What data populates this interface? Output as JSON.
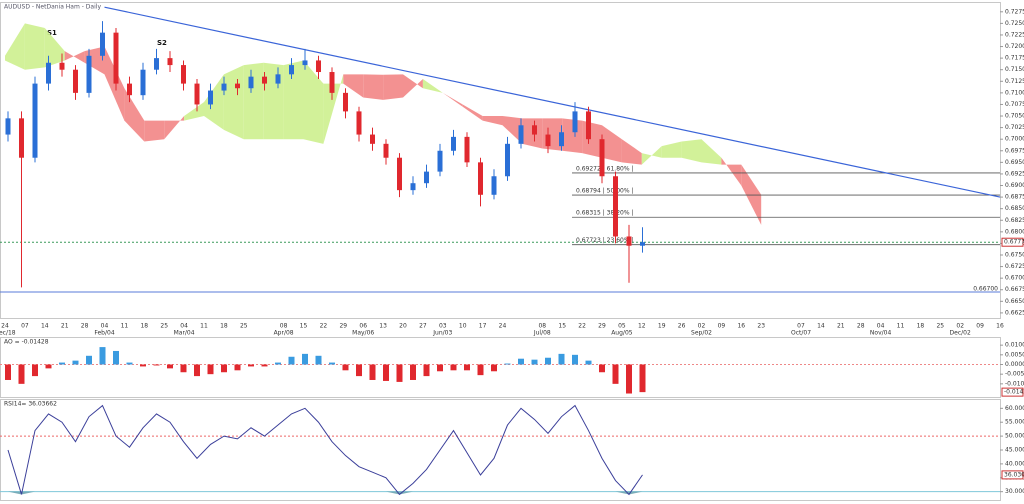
{
  "header": "AUDUSD - NetDania Ham - Daily",
  "chart_data": [
    {
      "type": "candlestick",
      "annotations": [
        "S1",
        "S2"
      ],
      "x_labels": [
        "24",
        "07",
        "14",
        "21",
        "28",
        "04",
        "11",
        "18",
        "25",
        "04",
        "11",
        "18",
        "25",
        null,
        "08",
        "15",
        "22",
        "29",
        "06",
        "13",
        "20",
        "27",
        "03",
        "10",
        "17",
        "24",
        null,
        "08",
        "15",
        "22",
        "29",
        "05",
        "12",
        "19",
        "26",
        "02",
        "09",
        "16",
        "23",
        null,
        "07",
        "14",
        "21",
        "28",
        "04",
        "11",
        "18",
        "25",
        "02",
        "09",
        "16"
      ],
      "month_labels": [
        "Dec/18",
        null,
        null,
        null,
        null,
        "Feb/04",
        null,
        null,
        null,
        "Mar/04",
        null,
        null,
        null,
        null,
        "Apr/08",
        null,
        null,
        null,
        "May/06",
        null,
        null,
        null,
        "Jun/03",
        null,
        null,
        null,
        null,
        "Jul/08",
        null,
        null,
        null,
        "Aug/05",
        null,
        null,
        null,
        "Sep/02",
        null,
        null,
        null,
        null,
        "Oct/07",
        null,
        null,
        null,
        "Nov/04",
        null,
        null,
        null,
        "Dec/02",
        null,
        null
      ],
      "open": [
        0.701,
        0.7045,
        0.696,
        0.712,
        0.7165,
        0.715,
        0.71,
        0.718,
        0.723,
        0.712,
        0.7095,
        0.715,
        0.7175,
        0.716,
        0.712,
        0.7075,
        0.7105,
        0.712,
        0.711,
        0.7135,
        0.712,
        0.714,
        0.716,
        0.717,
        0.7145,
        0.71,
        0.706,
        0.701,
        0.699,
        0.696,
        0.689,
        0.6905,
        0.693,
        0.6975,
        0.7005,
        0.695,
        0.688,
        0.692,
        0.699,
        0.703,
        0.701,
        0.6985,
        0.7015,
        0.706,
        0.7,
        0.692,
        0.679,
        0.677
      ],
      "high": [
        0.706,
        0.706,
        0.7135,
        0.718,
        0.7185,
        0.716,
        0.7195,
        0.7255,
        0.724,
        0.7135,
        0.7165,
        0.7195,
        0.719,
        0.717,
        0.713,
        0.712,
        0.7135,
        0.713,
        0.715,
        0.7145,
        0.7155,
        0.7175,
        0.7195,
        0.718,
        0.7155,
        0.711,
        0.707,
        0.7025,
        0.7,
        0.697,
        0.692,
        0.6945,
        0.699,
        0.702,
        0.7015,
        0.696,
        0.6935,
        0.7005,
        0.7045,
        0.704,
        0.7025,
        0.703,
        0.708,
        0.707,
        0.701,
        0.693,
        0.6815,
        0.681
      ],
      "low": [
        0.6995,
        0.668,
        0.695,
        0.7105,
        0.7135,
        0.7085,
        0.709,
        0.717,
        0.7105,
        0.708,
        0.7085,
        0.714,
        0.7145,
        0.7105,
        0.706,
        0.7065,
        0.7095,
        0.7095,
        0.71,
        0.7105,
        0.711,
        0.713,
        0.715,
        0.713,
        0.7085,
        0.7045,
        0.6995,
        0.6975,
        0.6945,
        0.6875,
        0.688,
        0.6895,
        0.692,
        0.6965,
        0.694,
        0.6855,
        0.687,
        0.691,
        0.698,
        0.6995,
        0.697,
        0.6975,
        0.7005,
        0.699,
        0.6905,
        0.6775,
        0.669,
        0.6755
      ],
      "close": [
        0.7045,
        0.696,
        0.712,
        0.7165,
        0.715,
        0.71,
        0.718,
        0.723,
        0.712,
        0.7095,
        0.715,
        0.7175,
        0.716,
        0.712,
        0.7075,
        0.7105,
        0.712,
        0.711,
        0.7135,
        0.712,
        0.714,
        0.716,
        0.717,
        0.7145,
        0.71,
        0.706,
        0.701,
        0.699,
        0.696,
        0.689,
        0.6905,
        0.693,
        0.6975,
        0.7005,
        0.695,
        0.688,
        0.692,
        0.699,
        0.703,
        0.701,
        0.6985,
        0.7015,
        0.706,
        0.7,
        0.692,
        0.679,
        0.677,
        0.67776
      ],
      "up_color": "#2a6fd6",
      "down_color": "#e0282e",
      "cloud": {
        "span_a": [
          0.718,
          0.725,
          0.724,
          0.719,
          0.7165,
          0.714,
          0.704,
          0.6995,
          0.7,
          0.705,
          0.708,
          0.714,
          0.716,
          0.7165,
          0.716,
          0.717,
          0.712,
          0.712,
          0.709,
          0.7085,
          0.709,
          0.713,
          0.71,
          0.707,
          0.704,
          0.703,
          0.699,
          0.698,
          0.6975,
          0.697,
          0.696,
          0.695,
          0.6945,
          0.6985,
          0.6995,
          0.7,
          0.696,
          0.69,
          0.6815
        ],
        "span_b": [
          0.717,
          0.715,
          0.7155,
          0.717,
          0.719,
          0.72,
          0.711,
          0.704,
          0.704,
          0.704,
          0.705,
          0.702,
          0.7,
          0.7,
          0.7,
          0.7,
          0.699,
          0.714,
          0.714,
          0.7139,
          0.714,
          0.711,
          0.71,
          0.7075,
          0.705,
          0.705,
          0.7045,
          0.7045,
          0.7045,
          0.704,
          0.703,
          0.7,
          0.697,
          0.696,
          0.696,
          0.695,
          0.6945,
          0.6945,
          0.688
        ],
        "up_color": "#cdef8e",
        "down_color": "#f28585"
      },
      "trendline": {
        "values": [
          0.7285,
          0.6875
        ],
        "color": "#3a64d8"
      },
      "levels": [
        {
          "value": 0.69272,
          "label": "0.69272 | 61.80% |"
        },
        {
          "value": 0.68794,
          "label": "0.68794 | 50.00% |"
        },
        {
          "value": 0.68315,
          "label": "0.68315 | 38.20% |"
        },
        {
          "value": 0.67723,
          "label": "0.67723 | 23.60% |"
        }
      ],
      "last_price": {
        "value": 0.67776,
        "label": "0.67776"
      },
      "support": {
        "value": 0.667,
        "label": "0.66700"
      },
      "ylim": [
        0.6614,
        0.7294
      ],
      "yticks": [
        {
          "value": 0.7275,
          "label": "0.72750"
        },
        {
          "value": 0.725,
          "label": "0.72500"
        },
        {
          "value": 0.7225,
          "label": "0.72250"
        },
        {
          "value": 0.72,
          "label": "0.72000"
        },
        {
          "value": 0.7175,
          "label": "0.71750"
        },
        {
          "value": 0.715,
          "label": "0.71500"
        },
        {
          "value": 0.7125,
          "label": "0.71250"
        },
        {
          "value": 0.71,
          "label": "0.71000"
        },
        {
          "value": 0.7075,
          "label": "0.70750"
        },
        {
          "value": 0.705,
          "label": "0.70500"
        },
        {
          "value": 0.7025,
          "label": "0.70250"
        },
        {
          "value": 0.7,
          "label": "0.70000"
        },
        {
          "value": 0.6975,
          "label": "0.69750"
        },
        {
          "value": 0.695,
          "label": "0.69500"
        },
        {
          "value": 0.6925,
          "label": "0.69250"
        },
        {
          "value": 0.69,
          "label": "0.69000"
        },
        {
          "value": 0.6875,
          "label": "0.68750"
        },
        {
          "value": 0.685,
          "label": "0.68500"
        },
        {
          "value": 0.6825,
          "label": "0.68250"
        },
        {
          "value": 0.68,
          "label": "0.68000"
        },
        {
          "value": 0.6775,
          "label": "0.67750"
        },
        {
          "value": 0.675,
          "label": "0.67500"
        },
        {
          "value": 0.6725,
          "label": "0.67250"
        },
        {
          "value": 0.67,
          "label": "0.67000"
        },
        {
          "value": 0.6675,
          "label": "0.66750"
        },
        {
          "value": 0.665,
          "label": "0.66500"
        },
        {
          "value": 0.6625,
          "label": "0.66250"
        }
      ]
    },
    {
      "type": "bar",
      "title": "AO = -0.01428",
      "values": [
        -0.008,
        -0.01,
        -0.006,
        -0.002,
        0.001,
        0.002,
        0.0045,
        0.009,
        0.007,
        0.001,
        -0.001,
        -0.0005,
        -0.002,
        -0.004,
        -0.006,
        -0.005,
        -0.004,
        -0.003,
        -0.001,
        -0.001,
        0.001,
        0.004,
        0.0055,
        0.0045,
        0.001,
        -0.003,
        -0.006,
        -0.008,
        -0.0085,
        -0.009,
        -0.008,
        -0.006,
        -0.0035,
        -0.003,
        -0.003,
        -0.0055,
        -0.0035,
        0.0005,
        0.003,
        0.0025,
        0.0035,
        0.0055,
        0.005,
        0.002,
        -0.004,
        -0.01,
        -0.015,
        -0.01428
      ],
      "pos_color": "#3a9be0",
      "neg_color": "#e0282e",
      "last_value": {
        "value": -0.01428,
        "label": "-0.01428"
      },
      "ylim": [
        -0.0168,
        0.0137
      ],
      "yticks": [
        {
          "value": 0.01,
          "label": "0.01000"
        },
        {
          "value": 0.005,
          "label": "0.00500"
        },
        {
          "value": 0,
          "label": "0.00000"
        },
        {
          "value": -0.005,
          "label": "-0.00500"
        },
        {
          "value": -0.01,
          "label": "-0.01000"
        }
      ]
    },
    {
      "type": "line",
      "title": "RSI14= 36.03662",
      "values": [
        45,
        29,
        52,
        58,
        55,
        48,
        57,
        61,
        50,
        46,
        53,
        58,
        55,
        48,
        42,
        47,
        50,
        49,
        53,
        50,
        54,
        58,
        60,
        55,
        48,
        43,
        39,
        37,
        35,
        29,
        33,
        38,
        45,
        52,
        44,
        36,
        42,
        54,
        60,
        56,
        51,
        57,
        61,
        52,
        42,
        34,
        29,
        36.03662
      ],
      "color": "#3b3f9a",
      "last_value": {
        "value": 36.03662,
        "label": "36.03662"
      },
      "upper_level": 50,
      "lower_level": 30,
      "ylim": [
        27,
        63
      ],
      "yticks": [
        {
          "value": 60,
          "label": "60.00000"
        },
        {
          "value": 55,
          "label": "55.00000"
        },
        {
          "value": 50,
          "label": "50.00000"
        },
        {
          "value": 45,
          "label": "45.00000"
        },
        {
          "value": 40,
          "label": "40.00000"
        },
        {
          "value": 35,
          "label": "35.00000"
        },
        {
          "value": 30,
          "label": "30.00000"
        }
      ]
    }
  ]
}
